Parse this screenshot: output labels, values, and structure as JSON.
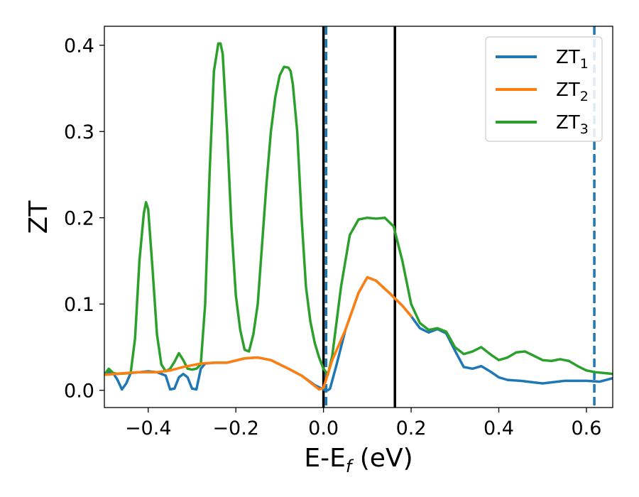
{
  "chart_data": {
    "type": "line",
    "xlabel": "E-E",
    "xlabel_sub": "f",
    "xlabel_unit": " (eV)",
    "ylabel": "ZT",
    "xlim": [
      -0.5,
      0.66
    ],
    "ylim": [
      -0.02,
      0.422
    ],
    "xticks": [
      -0.4,
      -0.2,
      0.0,
      0.2,
      0.4,
      0.6
    ],
    "xtick_labels": [
      "−0.4",
      "−0.2",
      "0.0",
      "0.2",
      "0.4",
      "0.6"
    ],
    "yticks": [
      0.0,
      0.1,
      0.2,
      0.3,
      0.4
    ],
    "ytick_labels": [
      "0.0",
      "0.1",
      "0.2",
      "0.3",
      "0.4"
    ],
    "grid": false,
    "legend_position": "top-right",
    "vlines": [
      {
        "x": 0.0,
        "color": "#000000",
        "style": "solid"
      },
      {
        "x": 0.163,
        "color": "#000000",
        "style": "solid"
      },
      {
        "x": 0.006,
        "color": "#1f77b4",
        "style": "dashed"
      },
      {
        "x": 0.618,
        "color": "#1f77b4",
        "style": "dashed"
      }
    ],
    "series": [
      {
        "name": "ZT",
        "sub": "1",
        "color": "#1f77b4",
        "x": [
          -0.5,
          -0.49,
          -0.48,
          -0.47,
          -0.46,
          -0.45,
          -0.44,
          -0.42,
          -0.4,
          -0.38,
          -0.36,
          -0.35,
          -0.34,
          -0.33,
          -0.32,
          -0.31,
          -0.3,
          -0.29,
          -0.28,
          -0.27,
          -0.25,
          -0.22,
          -0.18,
          -0.15,
          -0.12,
          -0.08,
          -0.05,
          -0.02,
          0.0,
          0.005,
          0.01,
          0.015,
          0.03,
          0.05,
          0.08,
          0.1,
          0.12,
          0.15,
          0.18,
          0.2,
          0.22,
          0.24,
          0.26,
          0.28,
          0.3,
          0.32,
          0.34,
          0.36,
          0.38,
          0.4,
          0.42,
          0.45,
          0.5,
          0.55,
          0.6,
          0.63,
          0.66
        ],
        "y": [
          0.018,
          0.021,
          0.02,
          0.012,
          0.001,
          0.008,
          0.02,
          0.021,
          0.022,
          0.021,
          0.017,
          0.001,
          0.002,
          0.015,
          0.019,
          0.015,
          0.002,
          0.001,
          0.025,
          0.031,
          0.032,
          0.032,
          0.037,
          0.038,
          0.035,
          0.025,
          0.017,
          0.006,
          0.001,
          0.0,
          0.0,
          0.002,
          0.03,
          0.07,
          0.113,
          0.131,
          0.127,
          0.113,
          0.098,
          0.086,
          0.072,
          0.067,
          0.071,
          0.066,
          0.046,
          0.027,
          0.025,
          0.028,
          0.022,
          0.015,
          0.012,
          0.011,
          0.008,
          0.011,
          0.011,
          0.01,
          0.014
        ]
      },
      {
        "name": "ZT",
        "sub": "2",
        "color": "#ff7f0e",
        "x": [
          -0.5,
          -0.45,
          -0.42,
          -0.38,
          -0.35,
          -0.32,
          -0.28,
          -0.25,
          -0.22,
          -0.18,
          -0.15,
          -0.12,
          -0.08,
          -0.05,
          -0.03,
          -0.01,
          0.0,
          0.02,
          0.05,
          0.08,
          0.1,
          0.12,
          0.15,
          0.18,
          0.2
        ],
        "y": [
          0.018,
          0.02,
          0.021,
          0.021,
          0.023,
          0.027,
          0.031,
          0.032,
          0.032,
          0.037,
          0.038,
          0.035,
          0.025,
          0.017,
          0.009,
          0.001,
          0.003,
          0.035,
          0.07,
          0.113,
          0.131,
          0.127,
          0.113,
          0.098,
          0.086
        ]
      },
      {
        "name": "ZT",
        "sub": "3",
        "color": "#2ca02c",
        "x": [
          -0.5,
          -0.49,
          -0.48,
          -0.47,
          -0.44,
          -0.43,
          -0.42,
          -0.41,
          -0.405,
          -0.4,
          -0.39,
          -0.38,
          -0.37,
          -0.36,
          -0.35,
          -0.34,
          -0.33,
          -0.32,
          -0.31,
          -0.3,
          -0.29,
          -0.28,
          -0.27,
          -0.26,
          -0.25,
          -0.24,
          -0.235,
          -0.23,
          -0.22,
          -0.21,
          -0.2,
          -0.19,
          -0.18,
          -0.17,
          -0.16,
          -0.15,
          -0.14,
          -0.13,
          -0.12,
          -0.11,
          -0.1,
          -0.09,
          -0.08,
          -0.075,
          -0.07,
          -0.06,
          -0.05,
          -0.04,
          -0.03,
          -0.02,
          -0.01,
          0.0,
          0.01,
          0.02,
          0.04,
          0.06,
          0.08,
          0.1,
          0.12,
          0.14,
          0.16,
          0.18,
          0.2,
          0.22,
          0.24,
          0.26,
          0.28,
          0.3,
          0.32,
          0.34,
          0.36,
          0.38,
          0.4,
          0.42,
          0.44,
          0.46,
          0.48,
          0.5,
          0.52,
          0.54,
          0.56,
          0.58,
          0.6,
          0.62,
          0.64,
          0.66
        ],
        "y": [
          0.018,
          0.025,
          0.02,
          0.019,
          0.02,
          0.06,
          0.15,
          0.205,
          0.218,
          0.21,
          0.14,
          0.065,
          0.03,
          0.022,
          0.025,
          0.033,
          0.043,
          0.035,
          0.025,
          0.024,
          0.025,
          0.03,
          0.1,
          0.25,
          0.37,
          0.402,
          0.402,
          0.39,
          0.3,
          0.19,
          0.11,
          0.07,
          0.047,
          0.045,
          0.065,
          0.1,
          0.17,
          0.24,
          0.3,
          0.34,
          0.365,
          0.375,
          0.374,
          0.37,
          0.355,
          0.3,
          0.2,
          0.12,
          0.08,
          0.055,
          0.038,
          0.025,
          0.018,
          0.04,
          0.12,
          0.18,
          0.198,
          0.2,
          0.199,
          0.2,
          0.19,
          0.15,
          0.1,
          0.078,
          0.07,
          0.072,
          0.068,
          0.05,
          0.042,
          0.045,
          0.05,
          0.042,
          0.035,
          0.038,
          0.044,
          0.045,
          0.04,
          0.035,
          0.034,
          0.036,
          0.034,
          0.028,
          0.023,
          0.021,
          0.02,
          0.019
        ]
      }
    ]
  }
}
